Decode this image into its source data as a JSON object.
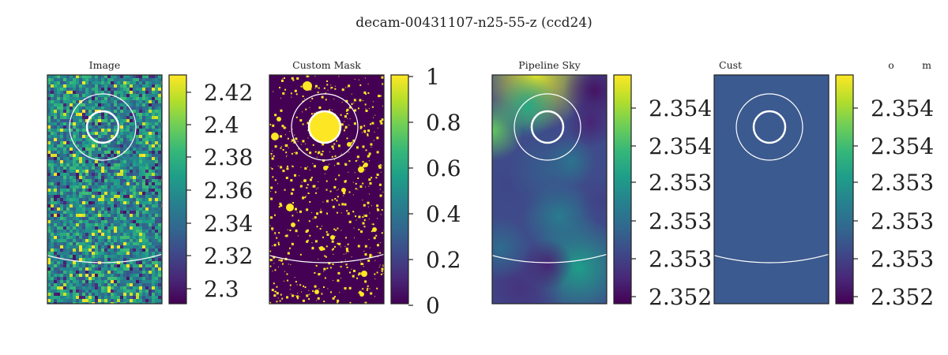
{
  "figure_title": "decam-00431107-n25-55-z (ccd24)",
  "colors": {
    "viridis": [
      "#440154",
      "#482878",
      "#3e4989",
      "#31688e",
      "#26828e",
      "#1f9e89",
      "#35b779",
      "#6ece58",
      "#b5de2b",
      "#fde725"
    ],
    "panel_border": "#222222",
    "overlay_ring": "#ffffff",
    "flat_fill": "#3b5a8f"
  },
  "chart_data": [
    {
      "type": "heatmap",
      "title": "Image",
      "pattern": "noise",
      "colorbar": {
        "ticks": [
          "2.42",
          "2.4",
          "2.38",
          "2.36",
          "2.34",
          "2.32",
          "2.3"
        ],
        "range": [
          2.29,
          2.43
        ]
      }
    },
    {
      "type": "heatmap",
      "title": "Custom Mask",
      "pattern": "binary-mask",
      "colorbar": {
        "ticks": [
          "1",
          "0.8",
          "0.6",
          "0.4",
          "0.2",
          "0"
        ],
        "range": [
          0,
          1
        ]
      }
    },
    {
      "type": "heatmap",
      "title": "Pipeline Sky",
      "pattern": "smooth",
      "colorbar": {
        "ticks": [
          "2.354",
          "2.354",
          "2.353",
          "2.353",
          "2.353",
          "2.352"
        ],
        "range": [
          2.352,
          2.354
        ]
      }
    },
    {
      "type": "heatmap",
      "title": "Cust",
      "extra_title_fragments": [
        "o",
        "m"
      ],
      "pattern": "flat",
      "colorbar": {
        "ticks": [
          "2.354",
          "2.354",
          "2.353",
          "2.353",
          "2.353",
          "2.352"
        ],
        "range": [
          2.352,
          2.354
        ]
      }
    }
  ]
}
